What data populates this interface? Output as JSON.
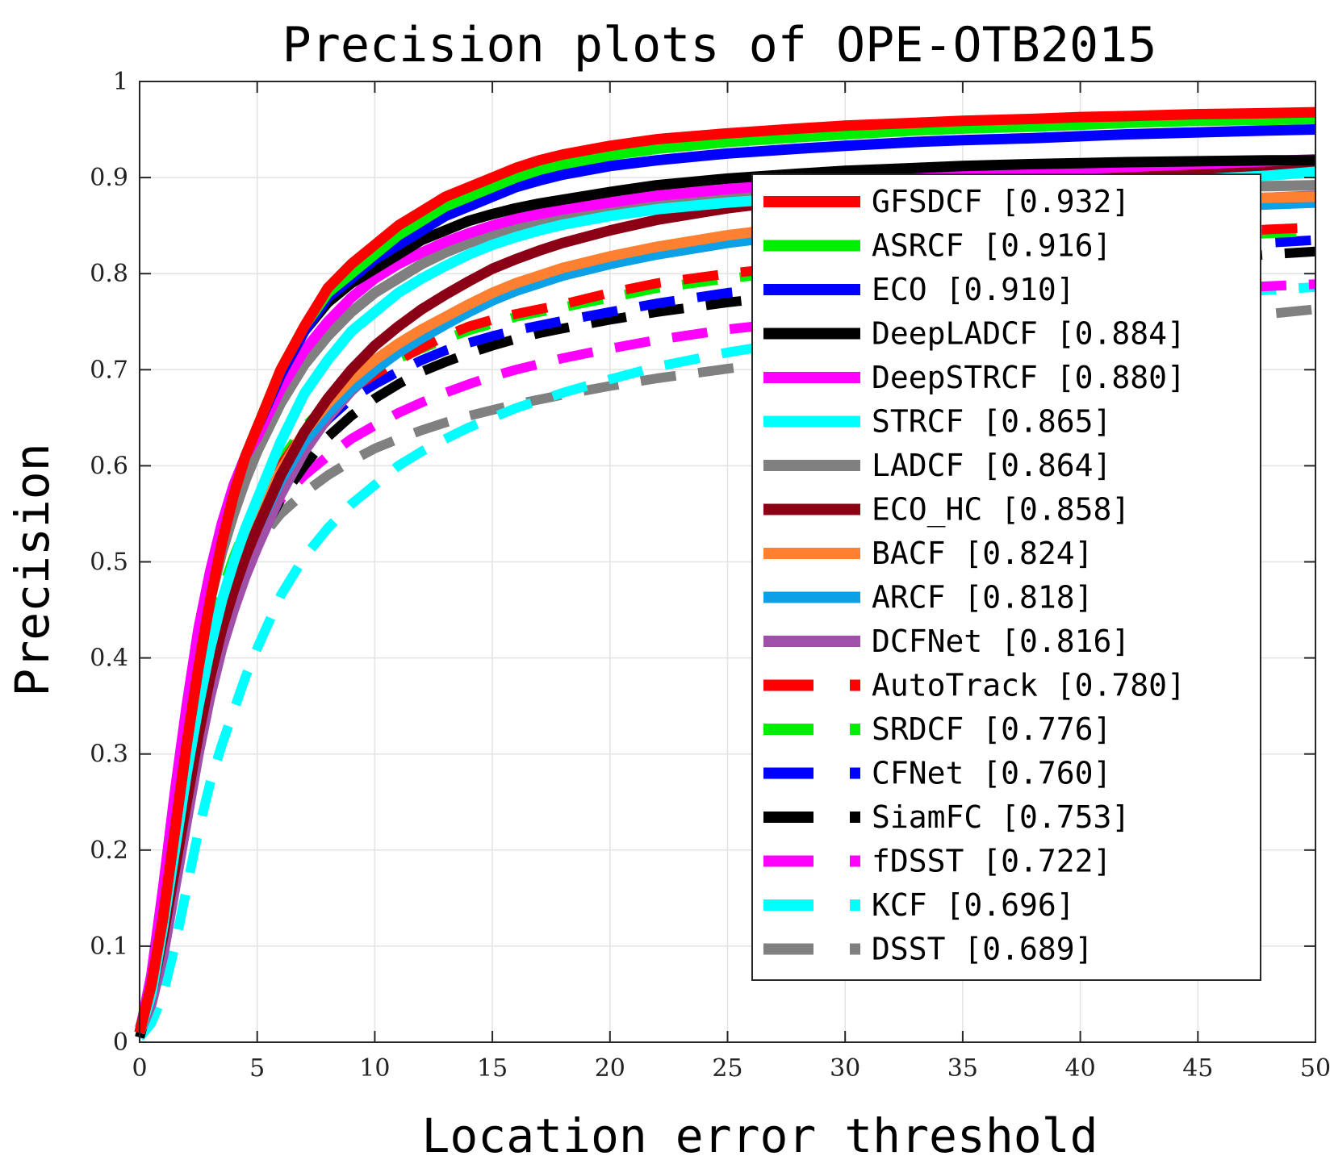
{
  "chart_data": {
    "type": "line",
    "title": "Precision plots of OPE-OTB2015",
    "xlabel": "Location error threshold",
    "ylabel": "Precision",
    "xlim": [
      0,
      50
    ],
    "ylim": [
      0,
      1
    ],
    "grid": true,
    "legend_position": "right",
    "x_ticks": [
      "0",
      "5",
      "10",
      "15",
      "20",
      "25",
      "30",
      "35",
      "40",
      "45",
      "50"
    ],
    "y_ticks": [
      "0",
      "0.1",
      "0.2",
      "0.3",
      "0.4",
      "0.5",
      "0.6",
      "0.7",
      "0.8",
      "0.9",
      "1"
    ],
    "x": [
      0,
      0.5,
      1,
      1.5,
      2,
      2.5,
      3,
      3.5,
      4,
      4.5,
      5,
      6,
      7,
      8,
      9,
      10,
      11,
      12,
      13,
      14,
      15,
      16,
      17,
      18,
      20,
      22,
      25,
      28,
      30,
      33,
      35,
      38,
      40,
      42,
      45,
      48,
      50
    ],
    "series": [
      {
        "name": "GFSDCF",
        "score": "[0.932]",
        "color": "#ff0000",
        "style": "solid",
        "values": [
          0.01,
          0.06,
          0.13,
          0.22,
          0.31,
          0.39,
          0.46,
          0.52,
          0.57,
          0.61,
          0.64,
          0.7,
          0.745,
          0.785,
          0.81,
          0.83,
          0.85,
          0.865,
          0.88,
          0.89,
          0.9,
          0.91,
          0.918,
          0.924,
          0.933,
          0.94,
          0.946,
          0.951,
          0.954,
          0.957,
          0.959,
          0.961,
          0.963,
          0.964,
          0.966,
          0.967,
          0.968
        ]
      },
      {
        "name": "ASRCF",
        "score": "[0.916]",
        "color": "#00ee00",
        "style": "solid",
        "values": [
          0.01,
          0.06,
          0.13,
          0.22,
          0.31,
          0.39,
          0.46,
          0.52,
          0.57,
          0.61,
          0.64,
          0.7,
          0.745,
          0.78,
          0.8,
          0.82,
          0.84,
          0.855,
          0.87,
          0.88,
          0.89,
          0.9,
          0.908,
          0.914,
          0.923,
          0.93,
          0.937,
          0.942,
          0.945,
          0.949,
          0.951,
          0.953,
          0.955,
          0.957,
          0.959,
          0.96,
          0.961
        ]
      },
      {
        "name": "ECO",
        "score": "[0.910]",
        "color": "#0000ff",
        "style": "solid",
        "values": [
          0.01,
          0.06,
          0.13,
          0.22,
          0.31,
          0.39,
          0.46,
          0.52,
          0.57,
          0.61,
          0.64,
          0.695,
          0.74,
          0.775,
          0.795,
          0.815,
          0.83,
          0.845,
          0.86,
          0.87,
          0.88,
          0.89,
          0.897,
          0.903,
          0.912,
          0.918,
          0.925,
          0.93,
          0.933,
          0.937,
          0.939,
          0.941,
          0.943,
          0.945,
          0.947,
          0.949,
          0.95
        ]
      },
      {
        "name": "DeepLADCF",
        "score": "[0.884]",
        "color": "#000000",
        "style": "solid",
        "values": [
          0.01,
          0.06,
          0.13,
          0.22,
          0.31,
          0.39,
          0.46,
          0.52,
          0.57,
          0.61,
          0.64,
          0.695,
          0.74,
          0.77,
          0.79,
          0.805,
          0.82,
          0.835,
          0.845,
          0.855,
          0.862,
          0.868,
          0.873,
          0.877,
          0.885,
          0.892,
          0.899,
          0.904,
          0.907,
          0.91,
          0.912,
          0.914,
          0.915,
          0.916,
          0.917,
          0.918,
          0.918
        ]
      },
      {
        "name": "DeepSTRCF",
        "score": "[0.880]",
        "color": "#ff00ff",
        "style": "solid",
        "values": [
          0.01,
          0.07,
          0.16,
          0.26,
          0.35,
          0.43,
          0.49,
          0.54,
          0.58,
          0.61,
          0.63,
          0.68,
          0.72,
          0.75,
          0.775,
          0.795,
          0.81,
          0.822,
          0.833,
          0.842,
          0.85,
          0.857,
          0.862,
          0.867,
          0.874,
          0.881,
          0.888,
          0.894,
          0.897,
          0.901,
          0.904,
          0.907,
          0.909,
          0.911,
          0.914,
          0.917,
          0.919
        ]
      },
      {
        "name": "STRCF",
        "score": "[0.865]",
        "color": "#00ffff",
        "style": "solid",
        "values": [
          0.01,
          0.05,
          0.12,
          0.2,
          0.28,
          0.35,
          0.41,
          0.46,
          0.5,
          0.535,
          0.565,
          0.625,
          0.675,
          0.71,
          0.74,
          0.76,
          0.78,
          0.795,
          0.808,
          0.82,
          0.83,
          0.838,
          0.845,
          0.851,
          0.86,
          0.867,
          0.874,
          0.879,
          0.882,
          0.886,
          0.888,
          0.891,
          0.893,
          0.895,
          0.898,
          0.902,
          0.906
        ]
      },
      {
        "name": "LADCF",
        "score": "[0.864]",
        "color": "#808080",
        "style": "solid",
        "values": [
          0.01,
          0.06,
          0.13,
          0.22,
          0.31,
          0.39,
          0.46,
          0.51,
          0.55,
          0.585,
          0.615,
          0.665,
          0.705,
          0.735,
          0.76,
          0.78,
          0.795,
          0.81,
          0.822,
          0.832,
          0.84,
          0.848,
          0.854,
          0.86,
          0.868,
          0.874,
          0.88,
          0.884,
          0.886,
          0.887,
          0.888,
          0.889,
          0.89,
          0.89,
          0.891,
          0.891,
          0.892
        ]
      },
      {
        "name": "ECO_HC",
        "score": "[0.858]",
        "color": "#8b0014",
        "style": "solid",
        "values": [
          0.01,
          0.05,
          0.11,
          0.18,
          0.25,
          0.32,
          0.38,
          0.43,
          0.47,
          0.505,
          0.535,
          0.59,
          0.635,
          0.67,
          0.7,
          0.725,
          0.745,
          0.763,
          0.778,
          0.792,
          0.805,
          0.815,
          0.824,
          0.832,
          0.845,
          0.856,
          0.868,
          0.877,
          0.882,
          0.889,
          0.893,
          0.898,
          0.901,
          0.904,
          0.908,
          0.912,
          0.914
        ]
      },
      {
        "name": "BACF",
        "score": "[0.824]",
        "color": "#ff8030",
        "style": "solid",
        "values": [
          0.01,
          0.05,
          0.12,
          0.2,
          0.28,
          0.35,
          0.41,
          0.455,
          0.49,
          0.52,
          0.545,
          0.595,
          0.635,
          0.665,
          0.69,
          0.71,
          0.727,
          0.742,
          0.755,
          0.768,
          0.78,
          0.79,
          0.798,
          0.806,
          0.818,
          0.828,
          0.84,
          0.849,
          0.854,
          0.86,
          0.863,
          0.868,
          0.871,
          0.874,
          0.877,
          0.879,
          0.88
        ]
      },
      {
        "name": "ARCF",
        "score": "[0.818]",
        "color": "#0ca0e6",
        "style": "solid",
        "values": [
          0.01,
          0.05,
          0.11,
          0.19,
          0.27,
          0.34,
          0.4,
          0.445,
          0.48,
          0.51,
          0.535,
          0.585,
          0.625,
          0.655,
          0.68,
          0.7,
          0.718,
          0.733,
          0.747,
          0.76,
          0.772,
          0.782,
          0.79,
          0.798,
          0.81,
          0.82,
          0.832,
          0.841,
          0.846,
          0.852,
          0.856,
          0.861,
          0.864,
          0.866,
          0.869,
          0.872,
          0.874
        ]
      },
      {
        "name": "DCFNet",
        "score": "[0.816]",
        "color": "#a050a8",
        "style": "solid",
        "values": [
          0.01,
          0.04,
          0.09,
          0.16,
          0.23,
          0.3,
          0.36,
          0.41,
          0.45,
          0.485,
          0.515,
          0.57,
          0.615,
          0.65,
          0.678,
          0.7,
          0.72,
          0.737,
          0.752,
          0.765,
          0.776,
          0.786,
          0.794,
          0.802,
          0.814,
          0.824,
          0.836,
          0.845,
          0.85,
          0.857,
          0.861,
          0.866,
          0.869,
          0.872,
          0.876,
          0.879,
          0.881
        ]
      },
      {
        "name": "AutoTrack",
        "score": "[0.780]",
        "color": "#ff0000",
        "style": "dashed",
        "values": [
          0.01,
          0.06,
          0.13,
          0.21,
          0.29,
          0.36,
          0.42,
          0.46,
          0.5,
          0.53,
          0.555,
          0.6,
          0.635,
          0.66,
          0.68,
          0.695,
          0.71,
          0.723,
          0.735,
          0.745,
          0.752,
          0.758,
          0.763,
          0.768,
          0.78,
          0.79,
          0.8,
          0.808,
          0.813,
          0.82,
          0.824,
          0.83,
          0.834,
          0.838,
          0.842,
          0.846,
          0.848
        ]
      },
      {
        "name": "SRDCF",
        "score": "[0.776]",
        "color": "#00ee00",
        "style": "dashed",
        "values": [
          0.01,
          0.065,
          0.14,
          0.22,
          0.3,
          0.37,
          0.43,
          0.47,
          0.505,
          0.535,
          0.56,
          0.605,
          0.64,
          0.665,
          0.685,
          0.7,
          0.712,
          0.722,
          0.732,
          0.741,
          0.748,
          0.755,
          0.76,
          0.765,
          0.775,
          0.785,
          0.795,
          0.803,
          0.808,
          0.815,
          0.819,
          0.825,
          0.829,
          0.833,
          0.838,
          0.842,
          0.844
        ]
      },
      {
        "name": "CFNet",
        "score": "[0.760]",
        "color": "#0000ff",
        "style": "dashed",
        "values": [
          0.01,
          0.055,
          0.12,
          0.2,
          0.28,
          0.35,
          0.41,
          0.45,
          0.485,
          0.515,
          0.54,
          0.585,
          0.62,
          0.648,
          0.67,
          0.685,
          0.698,
          0.71,
          0.72,
          0.728,
          0.735,
          0.741,
          0.746,
          0.751,
          0.76,
          0.769,
          0.78,
          0.788,
          0.793,
          0.8,
          0.805,
          0.812,
          0.817,
          0.821,
          0.827,
          0.832,
          0.835
        ]
      },
      {
        "name": "SiamFC",
        "score": "[0.753]",
        "color": "#000000",
        "style": "dashed",
        "values": [
          0.005,
          0.05,
          0.11,
          0.19,
          0.26,
          0.33,
          0.385,
          0.43,
          0.465,
          0.495,
          0.52,
          0.565,
          0.6,
          0.63,
          0.652,
          0.67,
          0.685,
          0.698,
          0.708,
          0.717,
          0.725,
          0.732,
          0.738,
          0.743,
          0.752,
          0.76,
          0.77,
          0.778,
          0.783,
          0.79,
          0.794,
          0.8,
          0.805,
          0.809,
          0.815,
          0.82,
          0.823
        ]
      },
      {
        "name": "fDSST",
        "score": "[0.722]",
        "color": "#ff00ff",
        "style": "dashed",
        "values": [
          0.01,
          0.05,
          0.12,
          0.19,
          0.27,
          0.34,
          0.39,
          0.435,
          0.47,
          0.5,
          0.525,
          0.565,
          0.59,
          0.61,
          0.628,
          0.642,
          0.655,
          0.666,
          0.676,
          0.685,
          0.693,
          0.7,
          0.706,
          0.712,
          0.722,
          0.731,
          0.742,
          0.75,
          0.755,
          0.762,
          0.766,
          0.772,
          0.776,
          0.779,
          0.783,
          0.787,
          0.789
        ]
      },
      {
        "name": "KCF",
        "score": "[0.696]",
        "color": "#00ffff",
        "style": "dashed",
        "values": [
          0.005,
          0.02,
          0.05,
          0.1,
          0.16,
          0.22,
          0.27,
          0.31,
          0.345,
          0.38,
          0.41,
          0.465,
          0.505,
          0.535,
          0.56,
          0.58,
          0.6,
          0.615,
          0.628,
          0.64,
          0.65,
          0.66,
          0.668,
          0.676,
          0.69,
          0.703,
          0.718,
          0.73,
          0.737,
          0.747,
          0.753,
          0.762,
          0.767,
          0.772,
          0.778,
          0.783,
          0.786
        ]
      },
      {
        "name": "DSST",
        "score": "[0.689]",
        "color": "#808080",
        "style": "dashed",
        "values": [
          0.015,
          0.06,
          0.13,
          0.21,
          0.29,
          0.355,
          0.405,
          0.445,
          0.475,
          0.5,
          0.52,
          0.55,
          0.572,
          0.59,
          0.605,
          0.618,
          0.628,
          0.637,
          0.645,
          0.652,
          0.658,
          0.664,
          0.669,
          0.674,
          0.683,
          0.691,
          0.701,
          0.71,
          0.715,
          0.722,
          0.727,
          0.734,
          0.739,
          0.744,
          0.751,
          0.758,
          0.763
        ]
      }
    ]
  }
}
